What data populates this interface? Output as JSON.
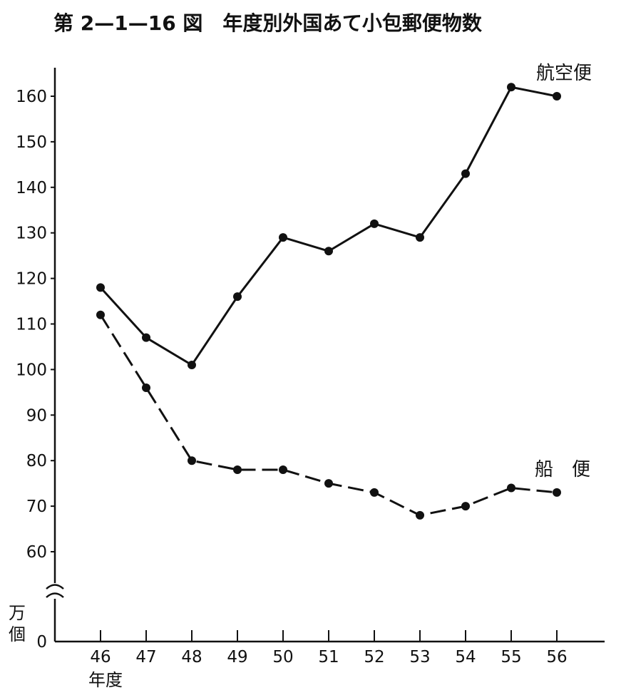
{
  "chart_data": {
    "type": "line",
    "title": "第 2—1—16 図　年度別外国あて小包郵便物数",
    "xlabel": "年度",
    "ylabel": "万個",
    "categories": [
      "46",
      "47",
      "48",
      "49",
      "50",
      "51",
      "52",
      "53",
      "54",
      "55",
      "56"
    ],
    "y_ticks": [
      "60",
      "70",
      "80",
      "90",
      "100",
      "110",
      "120",
      "130",
      "140",
      "150",
      "160"
    ],
    "y_zero_label": "0",
    "ylim": [
      0,
      165
    ],
    "axis_break": true,
    "grid": false,
    "series": [
      {
        "name": "航空便",
        "style": "solid",
        "values": [
          118,
          107,
          101,
          116,
          129,
          126,
          132,
          129,
          143,
          162,
          160
        ]
      },
      {
        "name": "船　便",
        "style": "dashed",
        "values": [
          112,
          96,
          80,
          78,
          78,
          75,
          73,
          68,
          70,
          74,
          73
        ]
      }
    ]
  }
}
